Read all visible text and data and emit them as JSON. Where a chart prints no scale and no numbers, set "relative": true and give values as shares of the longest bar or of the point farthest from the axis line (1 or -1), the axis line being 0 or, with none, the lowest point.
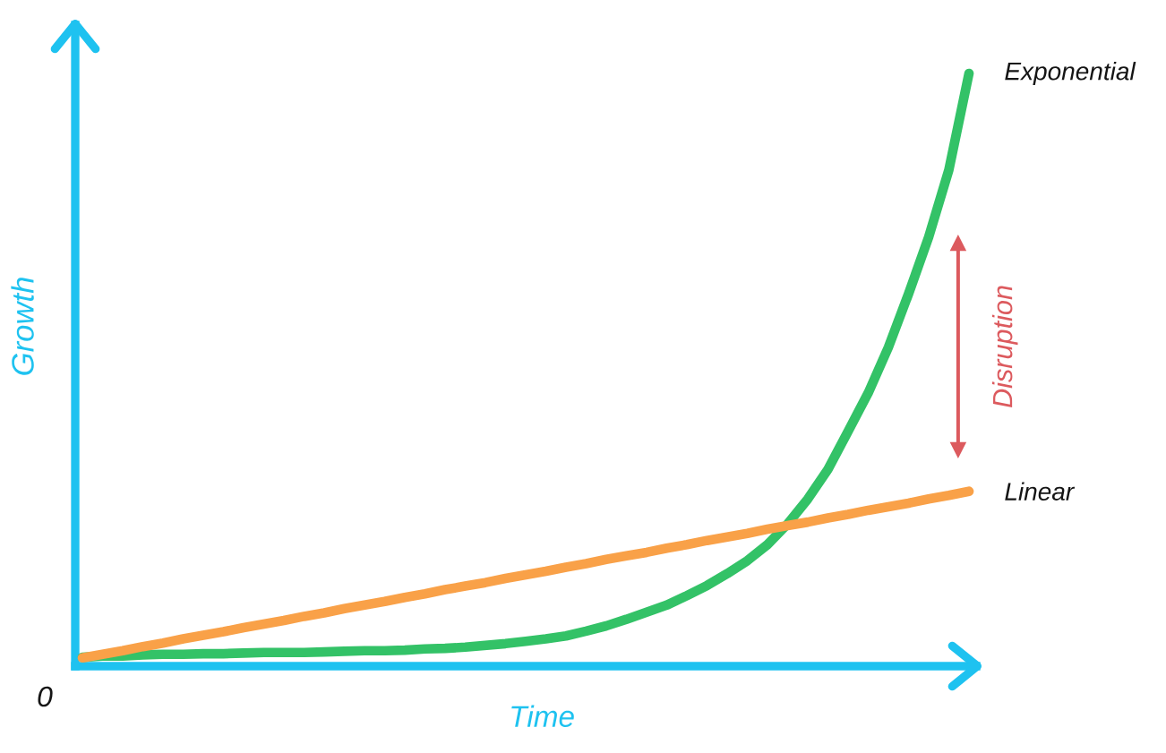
{
  "chart_data": {
    "type": "line",
    "relative": true,
    "xlabel": "Time",
    "ylabel": "Growth",
    "categories": [
      null,
      null,
      null,
      null,
      null,
      null,
      null,
      null,
      null,
      null,
      null,
      null,
      null,
      null,
      null,
      null,
      null,
      null,
      null,
      null,
      null,
      null,
      null,
      null,
      null,
      null,
      null,
      null,
      null,
      null,
      null,
      null,
      null,
      null,
      null,
      null,
      null,
      null,
      null,
      null,
      null,
      null,
      null,
      null,
      null
    ],
    "series": [
      {
        "name": "Exponential",
        "color": "#33c267",
        "values": [
          0.015,
          0.017,
          0.017,
          0.019,
          0.02,
          0.02,
          0.021,
          0.021,
          0.022,
          0.023,
          0.023,
          0.023,
          0.024,
          0.025,
          0.026,
          0.026,
          0.027,
          0.029,
          0.03,
          0.032,
          0.035,
          0.038,
          0.042,
          0.046,
          0.051,
          0.059,
          0.068,
          0.079,
          0.091,
          0.103,
          0.119,
          0.136,
          0.156,
          0.178,
          0.205,
          0.24,
          0.282,
          0.332,
          0.396,
          0.461,
          0.538,
          0.628,
          0.724,
          0.837,
          1
        ]
      },
      {
        "name": "Linear",
        "color": "#f9a148",
        "values": [
          0.014,
          0.02,
          0.026,
          0.033,
          0.039,
          0.046,
          0.052,
          0.058,
          0.065,
          0.071,
          0.077,
          0.084,
          0.09,
          0.097,
          0.103,
          0.109,
          0.116,
          0.122,
          0.129,
          0.135,
          0.141,
          0.148,
          0.154,
          0.16,
          0.167,
          0.173,
          0.18,
          0.186,
          0.192,
          0.199,
          0.205,
          0.212,
          0.218,
          0.224,
          0.231,
          0.237,
          0.243,
          0.25,
          0.256,
          0.263,
          0.269,
          0.275,
          0.282,
          0.288,
          0.295
        ]
      }
    ],
    "annotations": [
      "0",
      "Disruption"
    ],
    "legend": false,
    "marker": "none",
    "line_style": "solid"
  }
}
